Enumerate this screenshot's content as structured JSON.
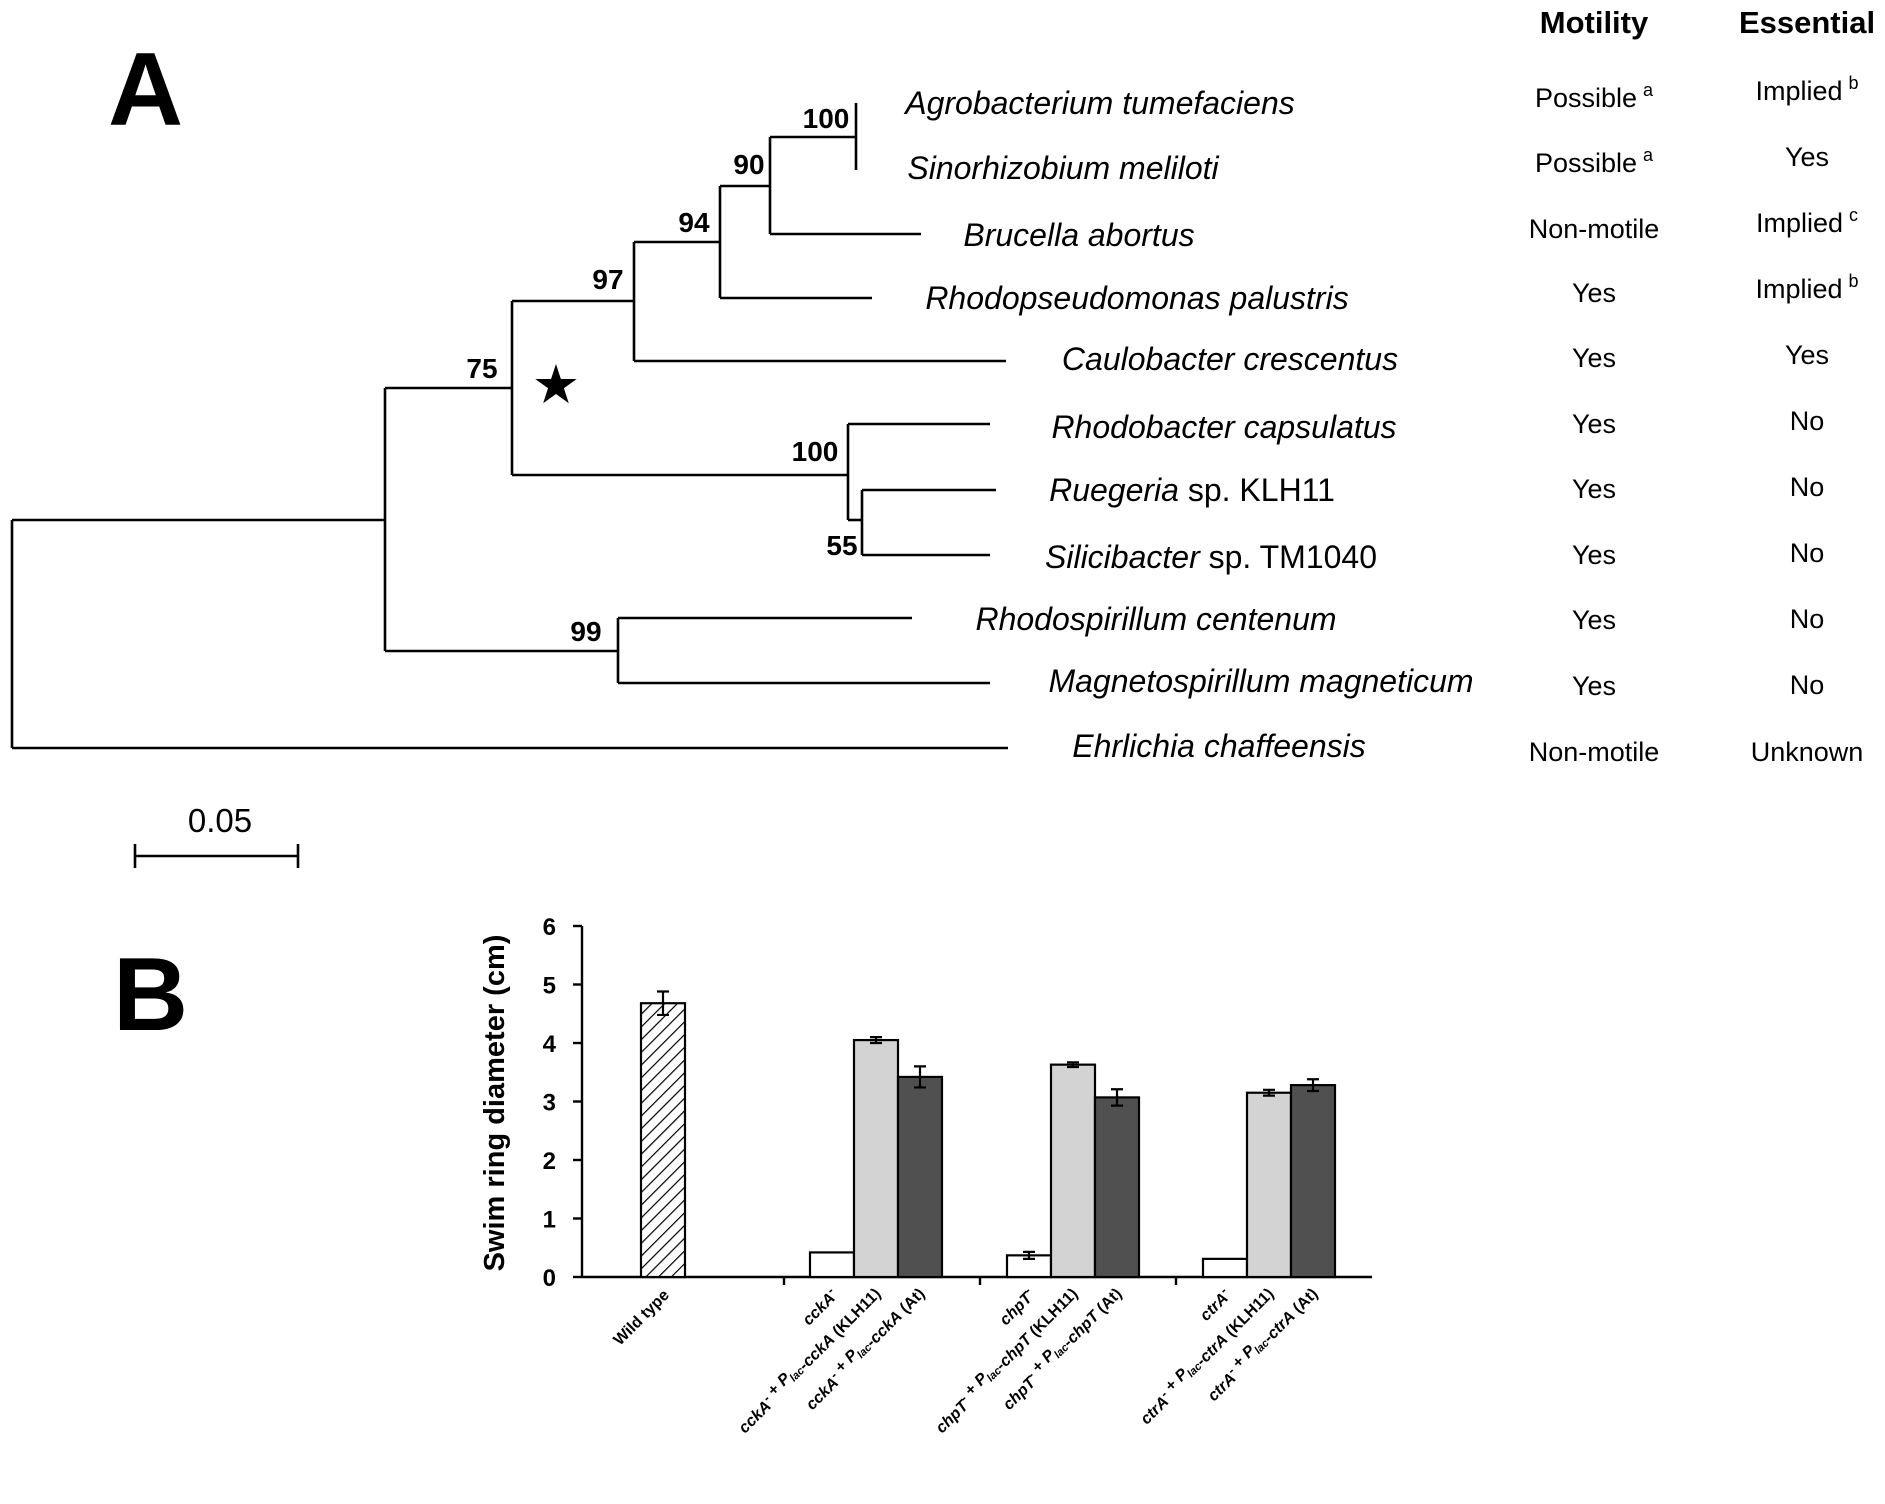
{
  "panel_a": {
    "label": "A",
    "headers": {
      "motility": "Motility",
      "essential": "Essential"
    },
    "taxa": [
      {
        "name_italic": "Agrobacterium tumefaciens",
        "name_plain": "",
        "motility": "Possible",
        "motility_note": "a",
        "essential": "Implied",
        "essential_note": "b"
      },
      {
        "name_italic": "Sinorhizobium meliloti",
        "name_plain": "",
        "motility": "Possible",
        "motility_note": "a",
        "essential": "Yes",
        "essential_note": ""
      },
      {
        "name_italic": "Brucella abortus",
        "name_plain": "",
        "motility": "Non-motile",
        "motility_note": "",
        "essential": "Implied",
        "essential_note": "c"
      },
      {
        "name_italic": "Rhodopseudomonas palustris",
        "name_plain": "",
        "motility": "Yes",
        "motility_note": "",
        "essential": "Implied",
        "essential_note": "b"
      },
      {
        "name_italic": "Caulobacter crescentus",
        "name_plain": "",
        "motility": "Yes",
        "motility_note": "",
        "essential": "Yes",
        "essential_note": ""
      },
      {
        "name_italic": "Rhodobacter capsulatus",
        "name_plain": "",
        "motility": "Yes",
        "motility_note": "",
        "essential": "No",
        "essential_note": ""
      },
      {
        "name_italic": "Ruegeria",
        "name_plain": " sp. KLH11",
        "motility": "Yes",
        "motility_note": "",
        "essential": "No",
        "essential_note": ""
      },
      {
        "name_italic": "Silicibacter",
        "name_plain": " sp. TM1040",
        "motility": "Yes",
        "motility_note": "",
        "essential": "No",
        "essential_note": ""
      },
      {
        "name_italic": "Rhodospirillum centenum",
        "name_plain": "",
        "motility": "Yes",
        "motility_note": "",
        "essential": "No",
        "essential_note": ""
      },
      {
        "name_italic": "Magnetospirillum magneticum",
        "name_plain": "",
        "motility": "Yes",
        "motility_note": "",
        "essential": "No",
        "essential_note": ""
      },
      {
        "name_italic": "Ehrlichia chaffeensis",
        "name_plain": "",
        "motility": "Non-motile",
        "motility_note": "",
        "essential": "Unknown",
        "essential_note": ""
      }
    ],
    "bootstrap": [
      "100",
      "90",
      "94",
      "97",
      "75",
      "100",
      "55",
      "99"
    ],
    "scale_bar": "0.05",
    "marker_glyph": "★"
  },
  "panel_b": {
    "label": "B"
  },
  "chart_data": {
    "type": "bar",
    "ylabel": "Swim ring diameter (cm)",
    "xlabel": "",
    "ylim": [
      0,
      6
    ],
    "yticks": [
      "0",
      "1",
      "2",
      "3",
      "4",
      "5",
      "6"
    ],
    "categories": [
      "Wild type",
      "cckA-",
      "cckA- + Plac-cckA (KLH11)",
      "cckA- + Plac-cckA (At)",
      "chpT-",
      "chpT- + Plac-chpT (KLH11)",
      "chpT- + Plac-chpT (At)",
      "ctrA-",
      "ctrA- + Plac-ctrA (KLH11)",
      "ctrA- + Plac-ctrA (At)"
    ],
    "values": [
      4.68,
      0.42,
      4.05,
      3.42,
      0.37,
      3.63,
      3.07,
      0.31,
      3.15,
      3.28
    ],
    "errors": [
      0.2,
      0.0,
      0.05,
      0.18,
      0.06,
      0.04,
      0.14,
      0.0,
      0.05,
      0.1
    ],
    "fills": [
      "hatch",
      "white",
      "light",
      "dark",
      "white",
      "light",
      "dark",
      "white",
      "light",
      "dark"
    ],
    "colors": {
      "light": "#d3d3d3",
      "dark": "#505050",
      "white": "#ffffff"
    },
    "grid": false,
    "labels": [
      {
        "parts": [
          [
            "Wild type",
            "n"
          ]
        ]
      },
      {
        "parts": [
          [
            "cckA",
            "i"
          ],
          [
            "-",
            "sup"
          ]
        ]
      },
      {
        "parts": [
          [
            "cckA",
            "i"
          ],
          [
            "-",
            "sup"
          ],
          [
            " + ",
            "n"
          ],
          [
            "P",
            "i"
          ],
          [
            "lac",
            "sub"
          ],
          [
            "-",
            "n"
          ],
          [
            "cckA",
            "i"
          ],
          [
            " (KLH11)",
            "n"
          ]
        ]
      },
      {
        "parts": [
          [
            "cckA",
            "i"
          ],
          [
            "-",
            "sup"
          ],
          [
            " + ",
            "n"
          ],
          [
            "P",
            "i"
          ],
          [
            "lac",
            "sub"
          ],
          [
            "-",
            "n"
          ],
          [
            "cckA",
            "i"
          ],
          [
            " (At)",
            "n"
          ]
        ]
      },
      {
        "parts": [
          [
            "chpT",
            "i"
          ],
          [
            "-",
            "sup"
          ]
        ]
      },
      {
        "parts": [
          [
            "chpT",
            "i"
          ],
          [
            "-",
            "sup"
          ],
          [
            " + ",
            "n"
          ],
          [
            "P",
            "i"
          ],
          [
            "lac",
            "sub"
          ],
          [
            "-",
            "n"
          ],
          [
            "chpT",
            "i"
          ],
          [
            " (KLH11)",
            "n"
          ]
        ]
      },
      {
        "parts": [
          [
            "chpT",
            "i"
          ],
          [
            "-",
            "sup"
          ],
          [
            " + ",
            "n"
          ],
          [
            "P",
            "i"
          ],
          [
            "lac",
            "sub"
          ],
          [
            "-",
            "n"
          ],
          [
            "chpT",
            "i"
          ],
          [
            " (At)",
            "n"
          ]
        ]
      },
      {
        "parts": [
          [
            "ctrA",
            "i"
          ],
          [
            "-",
            "sup"
          ]
        ]
      },
      {
        "parts": [
          [
            "ctrA",
            "i"
          ],
          [
            "-",
            "sup"
          ],
          [
            " + ",
            "n"
          ],
          [
            "P",
            "i"
          ],
          [
            "lac",
            "sub"
          ],
          [
            "-",
            "n"
          ],
          [
            "ctrA",
            "i"
          ],
          [
            " (KLH11)",
            "n"
          ]
        ]
      },
      {
        "parts": [
          [
            "ctrA",
            "i"
          ],
          [
            "-",
            "sup"
          ],
          [
            " + ",
            "n"
          ],
          [
            "P",
            "i"
          ],
          [
            "lac",
            "sub"
          ],
          [
            "-",
            "n"
          ],
          [
            "ctrA",
            "i"
          ],
          [
            " (At)",
            "n"
          ]
        ]
      }
    ]
  }
}
